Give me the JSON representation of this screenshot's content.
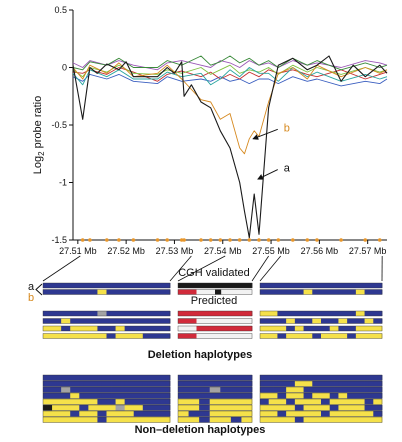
{
  "chart_data": {
    "type": "line",
    "ylabel": "Log2 probe ratio",
    "ylim": [
      -1.5,
      0.5
    ],
    "yticks": [
      "0.5",
      "0",
      "-0.5",
      "-1",
      "-1.5"
    ],
    "xticks": [
      "27.51 Mb",
      "27.52 Mb",
      "27.53 Mb",
      "27.54 Mb",
      "27.55 Mb",
      "27.56 Mb",
      "27.57 Mb"
    ],
    "xlim": [
      27.509,
      27.574
    ],
    "probe_positions": [
      27.511,
      27.5125,
      27.516,
      27.5185,
      27.5215,
      27.5265,
      27.5285,
      27.5315,
      27.532,
      27.5355,
      27.5375,
      27.5395,
      27.5415,
      27.5435,
      27.5455,
      27.5475,
      27.5495,
      27.5515,
      27.5545,
      27.5575,
      27.5595,
      27.5645,
      27.5695,
      27.5725
    ],
    "annotations": [
      {
        "text": "b",
        "x": 27.5518,
        "y": -0.52,
        "point_x": 27.5463,
        "point_y": -0.62
      },
      {
        "text": "a",
        "x": 27.5518,
        "y": -0.87,
        "point_x": 27.5473,
        "point_y": -0.97
      }
    ],
    "series_colors": [
      "#1a1a1a",
      "#d6891f",
      "#2aa6a0",
      "#3a8a3a",
      "#7ec13f",
      "#c53030",
      "#3b5fc0",
      "#9b59b6"
    ],
    "series": [
      {
        "x": [
          27.509,
          27.511,
          27.5125,
          27.514,
          27.516,
          27.5185,
          27.52,
          27.5215,
          27.5265,
          27.5285,
          27.53,
          27.5315,
          27.532,
          27.5335,
          27.5355,
          27.5375,
          27.5395,
          27.5415,
          27.5435,
          27.5445,
          27.5455,
          27.5465,
          27.5475,
          27.5485,
          27.5495,
          27.5515,
          27.5545,
          27.5575,
          27.5595,
          27.562,
          27.5645,
          27.567,
          27.5695,
          27.5725,
          27.574
        ],
        "values": [
          0.02,
          -0.45,
          0.0,
          -0.05,
          0.03,
          -0.02,
          0.05,
          -0.08,
          -0.08,
          0.0,
          -0.05,
          0.05,
          -0.25,
          -0.15,
          -0.3,
          -0.35,
          -0.55,
          -0.7,
          -1.0,
          -1.25,
          -1.48,
          -1.1,
          -1.45,
          -0.9,
          -0.35,
          0.02,
          0.08,
          -0.02,
          0.02,
          0.1,
          -0.12,
          0.02,
          -0.08,
          0.02,
          -0.05
        ]
      },
      {
        "x": [
          27.509,
          27.511,
          27.5125,
          27.516,
          27.5185,
          27.5215,
          27.5265,
          27.5285,
          27.5315,
          27.5355,
          27.5375,
          27.5395,
          27.5415,
          27.5435,
          27.5445,
          27.5455,
          27.5465,
          27.5475,
          27.5485,
          27.5495,
          27.5515,
          27.5545,
          27.5575,
          27.5595,
          27.5645,
          27.5695,
          27.5725,
          27.574
        ],
        "values": [
          0.0,
          -0.1,
          0.02,
          -0.05,
          0.04,
          -0.08,
          -0.05,
          0.02,
          -0.1,
          -0.28,
          -0.3,
          -0.45,
          -0.4,
          -0.7,
          -0.75,
          -0.62,
          -0.55,
          -0.6,
          -0.45,
          -0.3,
          -0.05,
          0.0,
          -0.1,
          0.02,
          -0.08,
          0.0,
          -0.05,
          -0.02
        ]
      },
      {
        "x": [
          27.509,
          27.511,
          27.5125,
          27.516,
          27.5185,
          27.5215,
          27.5265,
          27.5285,
          27.5315,
          27.5355,
          27.5375,
          27.5395,
          27.5415,
          27.5435,
          27.5455,
          27.5475,
          27.5495,
          27.5515,
          27.5545,
          27.5575,
          27.5595,
          27.5645,
          27.5695,
          27.5725,
          27.574
        ],
        "values": [
          -0.05,
          -0.15,
          -0.02,
          -0.08,
          -0.02,
          -0.1,
          -0.1,
          -0.04,
          -0.08,
          -0.05,
          -0.15,
          -0.1,
          -0.02,
          -0.08,
          0.0,
          -0.05,
          -0.05,
          -0.12,
          0.0,
          -0.08,
          -0.04,
          -0.12,
          -0.06,
          -0.1,
          -0.08
        ]
      },
      {
        "x": [
          27.509,
          27.511,
          27.5125,
          27.516,
          27.5185,
          27.5215,
          27.5265,
          27.5285,
          27.5315,
          27.5355,
          27.5375,
          27.5395,
          27.5415,
          27.5435,
          27.5455,
          27.5475,
          27.5495,
          27.5515,
          27.5545,
          27.5575,
          27.5595,
          27.5645,
          27.5695,
          27.5725,
          27.574
        ],
        "values": [
          0.0,
          -0.02,
          0.05,
          0.02,
          0.08,
          0.0,
          0.0,
          0.06,
          0.02,
          0.1,
          0.02,
          0.05,
          0.1,
          0.04,
          0.08,
          0.02,
          0.06,
          0.0,
          0.08,
          0.02,
          0.06,
          -0.02,
          0.04,
          0.0,
          0.02
        ]
      },
      {
        "x": [
          27.509,
          27.511,
          27.5125,
          27.516,
          27.5185,
          27.5215,
          27.5265,
          27.5285,
          27.5315,
          27.5355,
          27.5375,
          27.5395,
          27.5415,
          27.5435,
          27.5455,
          27.5475,
          27.5495,
          27.5515,
          27.5545,
          27.5575,
          27.5595,
          27.5645,
          27.5695,
          27.5725,
          27.574
        ],
        "values": [
          -0.02,
          -0.08,
          0.0,
          -0.04,
          0.02,
          -0.05,
          -0.06,
          -0.02,
          -0.05,
          0.0,
          -0.06,
          -0.02,
          0.02,
          -0.05,
          -0.02,
          -0.04,
          0.0,
          -0.06,
          0.02,
          -0.04,
          0.0,
          -0.06,
          0.0,
          -0.04,
          -0.02
        ]
      },
      {
        "x": [
          27.509,
          27.511,
          27.5125,
          27.516,
          27.5185,
          27.5215,
          27.5265,
          27.5285,
          27.5315,
          27.5355,
          27.5375,
          27.5395,
          27.5415,
          27.5435,
          27.5455,
          27.5475,
          27.5495,
          27.5515,
          27.5545,
          27.5575,
          27.5595,
          27.5645,
          27.5695,
          27.5725,
          27.574
        ],
        "values": [
          -0.04,
          -0.05,
          -0.02,
          -0.06,
          0.0,
          -0.04,
          -0.12,
          -0.06,
          -0.03,
          -0.08,
          -0.04,
          -0.1,
          -0.06,
          -0.1,
          -0.04,
          -0.08,
          -0.02,
          -0.05,
          -0.02,
          -0.06,
          -0.08,
          -0.02,
          -0.1,
          -0.06,
          -0.04
        ]
      },
      {
        "x": [
          27.509,
          27.511,
          27.5125,
          27.516,
          27.5185,
          27.5215,
          27.5265,
          27.5285,
          27.5315,
          27.5355,
          27.5375,
          27.5395,
          27.5415,
          27.5435,
          27.5455,
          27.5475,
          27.5495,
          27.5515,
          27.5545,
          27.5575,
          27.5595,
          27.5645,
          27.5695,
          27.5725,
          27.574
        ],
        "values": [
          -0.08,
          -0.12,
          -0.06,
          -0.1,
          -0.06,
          -0.12,
          -0.14,
          -0.08,
          -0.12,
          -0.1,
          -0.12,
          -0.08,
          -0.12,
          -0.1,
          -0.14,
          -0.1,
          -0.1,
          -0.14,
          -0.08,
          -0.12,
          -0.1,
          -0.16,
          -0.12,
          -0.14,
          -0.1
        ]
      },
      {
        "x": [
          27.509,
          27.511,
          27.5125,
          27.516,
          27.5185,
          27.5215,
          27.5265,
          27.5285,
          27.5315,
          27.5355,
          27.5375,
          27.5395,
          27.5415,
          27.5435,
          27.5455,
          27.5475,
          27.5495,
          27.5515,
          27.5545,
          27.5575,
          27.5595,
          27.5645,
          27.5695,
          27.5725,
          27.574
        ],
        "values": [
          0.04,
          0.0,
          0.06,
          0.02,
          0.06,
          0.02,
          -0.02,
          0.04,
          0.06,
          0.02,
          0.0,
          0.06,
          0.04,
          0.0,
          0.06,
          0.02,
          0.04,
          0.0,
          0.06,
          0.02,
          0.04,
          0.0,
          0.06,
          0.04,
          0.02
        ]
      }
    ]
  },
  "haplotypes": {
    "palette": {
      "Y": "#f5e14a",
      "B": "#2e3891",
      "G": "#a3a3a3",
      "K": "#1a1a1a",
      "R": "#d12a3a",
      "W": "#f2f2f2"
    },
    "labels": {
      "cgh_validated": "CGH validated",
      "predicted": "Predicted",
      "deletion": "Deletion haplotypes",
      "non_deletion": "Non–deletion haplotypes",
      "a": "a",
      "b": "b"
    },
    "cgh_left": [
      "BBBBBBBBBBBBBBBBBBBBBBBBBBBB",
      "BBBBBBBBBBBBYYBBBBBBBBBBBBBB"
    ],
    "cgh_mid": [
      "KKKKKKKKKKKK",
      "RRRWWWKWWWWW"
    ],
    "cgh_right": [
      "BBBBBBBBBBBBBBBBBBBBBBBBBBBB",
      "BBBBBBBBBBYYBBBBBBBBBBYYBBBB"
    ],
    "pred_left": [
      "BBBBBBBBBBBBGGBBBBBBBBBBBBBB",
      "BBBBYYBBBBBBBBBBBBBBBBBBBBBB",
      "YYYYBBYYYYYYBBBBYYBBBBBBBBBB",
      "YYYYYYYYYYYYYYBBYYYYYYBBBBBB"
    ],
    "pred_mid": [
      "RRRRRRRRRRRR",
      "RRRWWWWWWWWW",
      "WWWRRRRRRRRR",
      "RRRWWWWWWWWW"
    ],
    "pred_right": [
      "YYYYBBBBBBBBBBBBBBBBBBYYBBBB",
      "BBBBBBYYBBBBYYBBBBYYBBBBYYBB",
      "YYYYYYBBYYBBBBBBYYBBBBYYYYYY",
      "YYYYBBYYYYYYBBYYYYYYBBYYYYYY"
    ],
    "non_left": [
      "BBBBBBBBBBBBBBBBBBBBBBBBBBBB",
      "BBBBBBBBBBBBBBBBBBBBBBBBBBBB",
      "BBBBGGBBBBBBBBBBBBBBBBBBBBBB",
      "BBBBBBYYBBBBBBBBBBBBBBBBBBBB",
      "YYYYYYYYYYYYBBBBYYBBBBBBBBBB",
      "KKYYYYYYBBYYYYYYGGYYYYBBBBBB",
      "YYYYYYBBYYYYBBYYYYYYBBBBBBBB",
      "YYYYYYYYYYYYBBYYYYYYYYYYYYYY"
    ],
    "non_mid": [
      "BBBBBBBBBBBBBB",
      "BBBBBBBBBBBBBB",
      "BBBBBBGGBBBBBB",
      "BBBBBBBBBBBBBB",
      "YYYYBBYYYYYYYY",
      "YYYYBBYYYYYYYY",
      "YYBBBBYYYYYYYY",
      "YYYYBBYYYYBBYY"
    ],
    "non_right": [
      "BBBBBBBBBBBBBBBBBBBBBBBBBBBB",
      "BBBBBBBBYYYYBBBBBBBBBBBBBBBB",
      "BBBBBBYYYYBBBBBBBBBBBBBBBBBB",
      "YYYYBBYYYYBBYYYYBBYYBBBBBBBB",
      "BBYYYYBBYYYYYYBBYYYYYYYYBBYY",
      "YYYYYYYYBBYYYYYYBBYYYYYYBBBB",
      "YYYYBBYYYYYYYYBBYYYYYYYYYYBB",
      "YYYYYYYYBBYYYYYYYYYYYYYYYYYY"
    ]
  }
}
